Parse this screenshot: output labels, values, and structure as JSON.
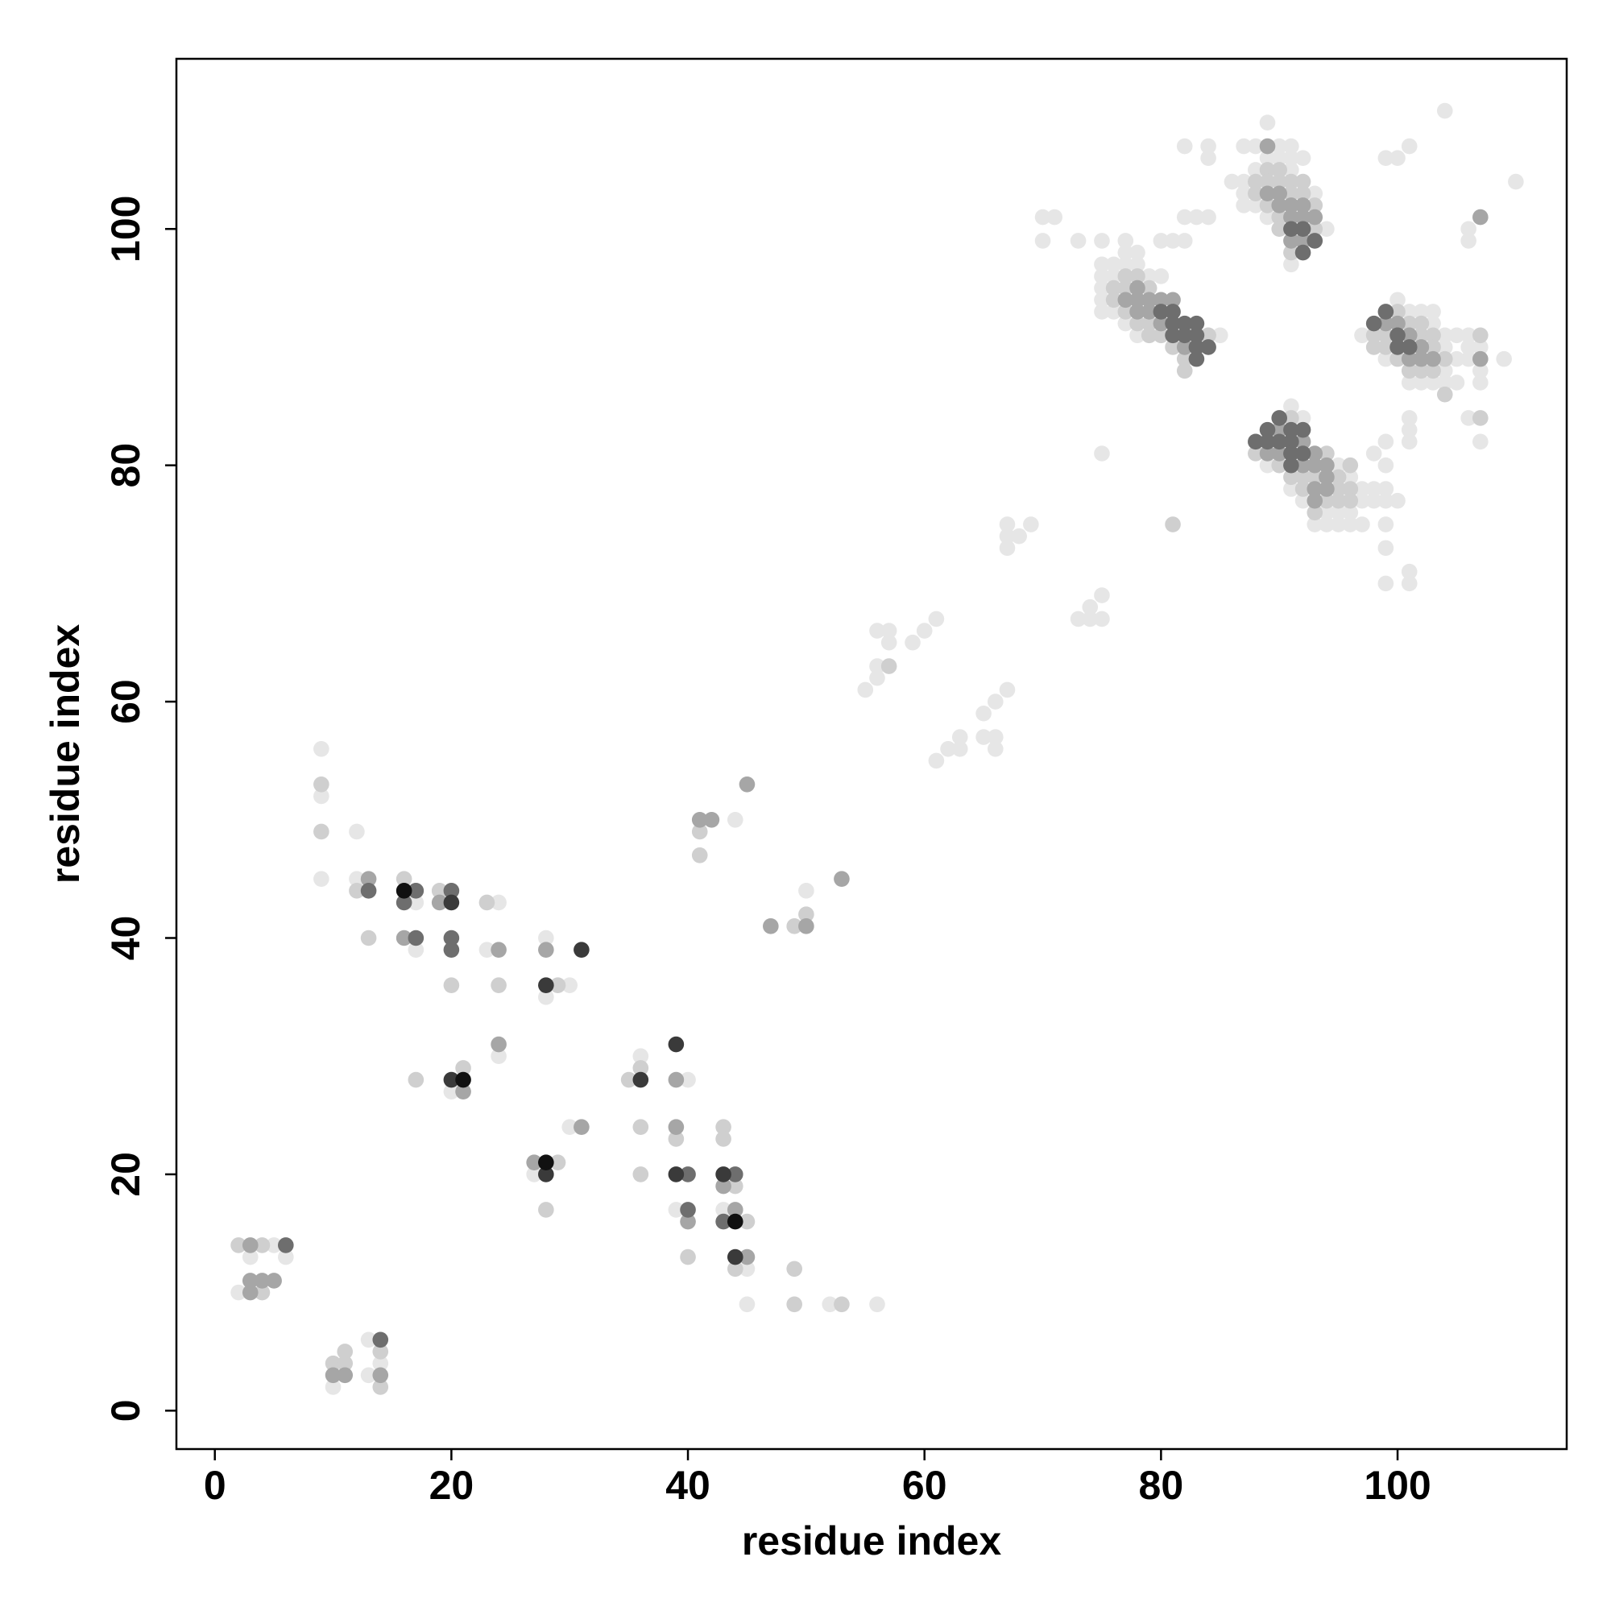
{
  "chart_data": {
    "type": "scatter",
    "xlabel": "residue index",
    "ylabel": "residue index",
    "xlim": [
      -3.25,
      114.3
    ],
    "ylim": [
      -3.25,
      114.4
    ],
    "xticks": [
      0,
      20,
      40,
      60,
      80,
      100
    ],
    "yticks": [
      0,
      20,
      40,
      60,
      80,
      100
    ],
    "grid": false,
    "series": [
      {
        "color": "#e6e6e6",
        "x": [
          5,
          3,
          6,
          2,
          10,
          13,
          14,
          13,
          9,
          9,
          9,
          12,
          12,
          17,
          17,
          24,
          23,
          24,
          28,
          28,
          30,
          20,
          27,
          30,
          36,
          40,
          39,
          43,
          45,
          45,
          52,
          56,
          44,
          50,
          55,
          56,
          56,
          56,
          57,
          57,
          59,
          60,
          61,
          61,
          62,
          63,
          63,
          65,
          66,
          66,
          65,
          66,
          67,
          67,
          67,
          67,
          68,
          69,
          70,
          71,
          70,
          73,
          73,
          74,
          74,
          75,
          75,
          75,
          75,
          75,
          75,
          75,
          75,
          75,
          76,
          76,
          76,
          77,
          77,
          77,
          77,
          78,
          78,
          78,
          79,
          80,
          81,
          82,
          85,
          82,
          84,
          84,
          82,
          83,
          84,
          80,
          86,
          87,
          87,
          87,
          87,
          88,
          88,
          88,
          89,
          89,
          89,
          90,
          90,
          91,
          91,
          91,
          91,
          92,
          93,
          94,
          97,
          99,
          100,
          101,
          101,
          102,
          102,
          103,
          103,
          103,
          104,
          104,
          104,
          104,
          105,
          105,
          105,
          106,
          106,
          106,
          106,
          107,
          107,
          107,
          107,
          109,
          99,
          100,
          101,
          104,
          106,
          106,
          110,
          101,
          101,
          101,
          89,
          91,
          91,
          92,
          92,
          93,
          94,
          94,
          95,
          95,
          95,
          96,
          96,
          96,
          97,
          97,
          97,
          98,
          98,
          98,
          99,
          99,
          99,
          99,
          99,
          99,
          99,
          100,
          101,
          101
        ],
        "values": [
          14,
          13,
          13,
          10,
          2,
          6,
          4,
          3,
          56,
          52,
          45,
          49,
          45,
          43,
          39,
          43,
          39,
          30,
          40,
          35,
          36,
          27,
          20,
          24,
          30,
          28,
          17,
          17,
          12,
          9,
          9,
          9,
          50,
          44,
          61,
          62,
          63,
          66,
          66,
          65,
          65,
          66,
          67,
          55,
          56,
          56,
          57,
          57,
          57,
          56,
          59,
          60,
          61,
          75,
          74,
          73,
          74,
          75,
          101,
          101,
          99,
          99,
          67,
          68,
          67,
          67,
          69,
          81,
          99,
          97,
          96,
          95,
          94,
          93,
          97,
          96,
          93,
          99,
          98,
          97,
          92,
          98,
          97,
          91,
          96,
          96,
          99,
          99,
          91,
          107,
          107,
          106,
          101,
          101,
          101,
          99,
          104,
          107,
          104,
          103,
          102,
          107,
          105,
          102,
          109,
          106,
          101,
          107,
          106,
          107,
          106,
          105,
          97,
          106,
          103,
          100,
          91,
          89,
          94,
          93,
          87,
          93,
          87,
          93,
          92,
          87,
          91,
          90,
          88,
          87,
          91,
          89,
          87,
          91,
          90,
          89,
          84,
          90,
          88,
          87,
          82,
          89,
          106,
          106,
          107,
          110,
          100,
          99,
          104,
          84,
          83,
          82,
          80,
          85,
          78,
          84,
          77,
          75,
          76,
          75,
          80,
          76,
          75,
          79,
          76,
          75,
          78,
          77,
          75,
          81,
          78,
          77,
          82,
          80,
          78,
          77,
          75,
          73,
          70,
          77,
          71,
          70
        ]
      },
      {
        "color": "#cfcfcf",
        "x": [
          2,
          4,
          4,
          10,
          11,
          11,
          14,
          14,
          9,
          9,
          12,
          13,
          16,
          19,
          20,
          23,
          24,
          29,
          17,
          21,
          29,
          28,
          35,
          36,
          36,
          36,
          39,
          40,
          43,
          43,
          44,
          45,
          44,
          49,
          49,
          53,
          41,
          41,
          49,
          50,
          57,
          81,
          76,
          76,
          77,
          77,
          77,
          78,
          78,
          79,
          79,
          79,
          80,
          81,
          82,
          82,
          84,
          88,
          88,
          89,
          89,
          89,
          90,
          90,
          90,
          90,
          91,
          91,
          91,
          92,
          92,
          93,
          93,
          98,
          98,
          99,
          99,
          100,
          100,
          101,
          101,
          102,
          102,
          102,
          103,
          103,
          103,
          104,
          104,
          107,
          107,
          88,
          90,
          91,
          91,
          92,
          92,
          93,
          93,
          94,
          94,
          95,
          95,
          95,
          96,
          96,
          96
        ],
        "values": [
          14,
          14,
          10,
          4,
          5,
          4,
          5,
          2,
          53,
          49,
          44,
          40,
          45,
          44,
          36,
          43,
          36,
          36,
          28,
          29,
          21,
          17,
          28,
          29,
          24,
          20,
          23,
          13,
          24,
          23,
          19,
          16,
          12,
          12,
          9,
          9,
          49,
          47,
          41,
          42,
          63,
          75,
          95,
          94,
          96,
          95,
          93,
          96,
          92,
          95,
          92,
          91,
          91,
          90,
          89,
          88,
          91,
          104,
          103,
          105,
          104,
          102,
          105,
          104,
          101,
          100,
          104,
          103,
          98,
          104,
          103,
          102,
          100,
          91,
          90,
          91,
          90,
          93,
          89,
          92,
          88,
          92,
          91,
          88,
          91,
          90,
          88,
          89,
          86,
          91,
          84,
          81,
          80,
          84,
          79,
          79,
          78,
          79,
          76,
          81,
          77,
          79,
          78,
          77,
          80,
          78,
          77
        ]
      },
      {
        "color": "#a6a6a6",
        "x": [
          3,
          3,
          4,
          5,
          3,
          10,
          11,
          14,
          13,
          16,
          19,
          24,
          24,
          28,
          21,
          27,
          31,
          39,
          39,
          40,
          43,
          44,
          45,
          41,
          42,
          45,
          47,
          50,
          53,
          77,
          78,
          78,
          78,
          79,
          79,
          80,
          80,
          81,
          82,
          89,
          89,
          90,
          90,
          91,
          91,
          91,
          92,
          92,
          92,
          93,
          99,
          100,
          101,
          101,
          102,
          102,
          103,
          107,
          107,
          89,
          90,
          90,
          92,
          92,
          93,
          93,
          93,
          93,
          94,
          94,
          94
        ],
        "values": [
          14,
          11,
          11,
          11,
          10,
          3,
          3,
          3,
          45,
          40,
          43,
          39,
          31,
          39,
          27,
          21,
          24,
          28,
          24,
          16,
          19,
          17,
          13,
          50,
          50,
          53,
          41,
          41,
          45,
          94,
          95,
          94,
          93,
          94,
          93,
          94,
          92,
          94,
          90,
          107,
          103,
          103,
          102,
          102,
          101,
          99,
          102,
          101,
          99,
          101,
          92,
          92,
          91,
          89,
          90,
          89,
          89,
          89,
          101,
          81,
          83,
          81,
          82,
          80,
          81,
          80,
          78,
          77,
          80,
          79,
          78
        ]
      },
      {
        "color": "#6e6e6e",
        "x": [
          6,
          14,
          13,
          16,
          17,
          17,
          20,
          20,
          20,
          40,
          40,
          44,
          43,
          80,
          81,
          81,
          81,
          82,
          82,
          83,
          83,
          83,
          83,
          84,
          91,
          92,
          92,
          93,
          98,
          99,
          100,
          100,
          101,
          88,
          89,
          89,
          90,
          90,
          91,
          91,
          91,
          91,
          92,
          92
        ],
        "values": [
          14,
          6,
          44,
          43,
          44,
          40,
          44,
          40,
          39,
          20,
          17,
          20,
          16,
          93,
          93,
          92,
          91,
          92,
          91,
          92,
          91,
          90,
          89,
          90,
          100,
          100,
          98,
          99,
          92,
          93,
          91,
          90,
          90,
          82,
          83,
          82,
          84,
          82,
          83,
          82,
          81,
          80,
          83,
          81
        ]
      },
      {
        "color": "#3a3a3a",
        "x": [
          20,
          31,
          28,
          20,
          28,
          36,
          39,
          39,
          43,
          44
        ],
        "values": [
          43,
          39,
          36,
          28,
          20,
          28,
          31,
          20,
          20,
          13
        ]
      },
      {
        "color": "#111111",
        "x": [
          16,
          21,
          28,
          44
        ],
        "values": [
          44,
          28,
          21,
          16
        ]
      }
    ]
  }
}
